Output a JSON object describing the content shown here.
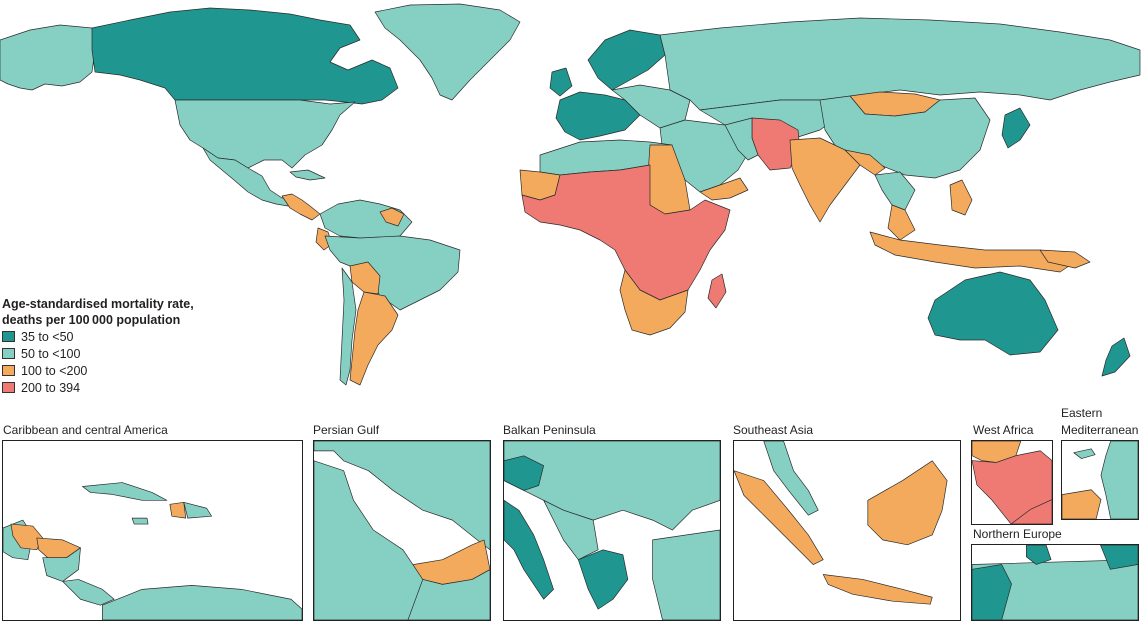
{
  "legend": {
    "title_line1": "Age-standardised mortality rate,",
    "title_line2": "deaths per 100 000 population",
    "items": [
      {
        "label": "35 to <50",
        "color": "#1f968f"
      },
      {
        "label": "50 to <100",
        "color": "#85cfc3"
      },
      {
        "label": "100 to <200",
        "color": "#f4aa5c"
      },
      {
        "label": "200 to 394",
        "color": "#ef7a73"
      }
    ]
  },
  "insets": [
    {
      "title": "Caribbean and central America"
    },
    {
      "title": "Persian Gulf"
    },
    {
      "title": "Balkan Peninsula"
    },
    {
      "title": "Southeast Asia"
    },
    {
      "title": "West Africa"
    },
    {
      "title_line1": "Eastern",
      "title_line2": "Mediterranean"
    },
    {
      "title": "Northern Europe"
    }
  ],
  "colors": {
    "class_35_50": "#1f968f",
    "class_50_100": "#85cfc3",
    "class_100_200": "#f4aa5c",
    "class_200_394": "#ef7a73",
    "border": "#2b2b2b"
  }
}
